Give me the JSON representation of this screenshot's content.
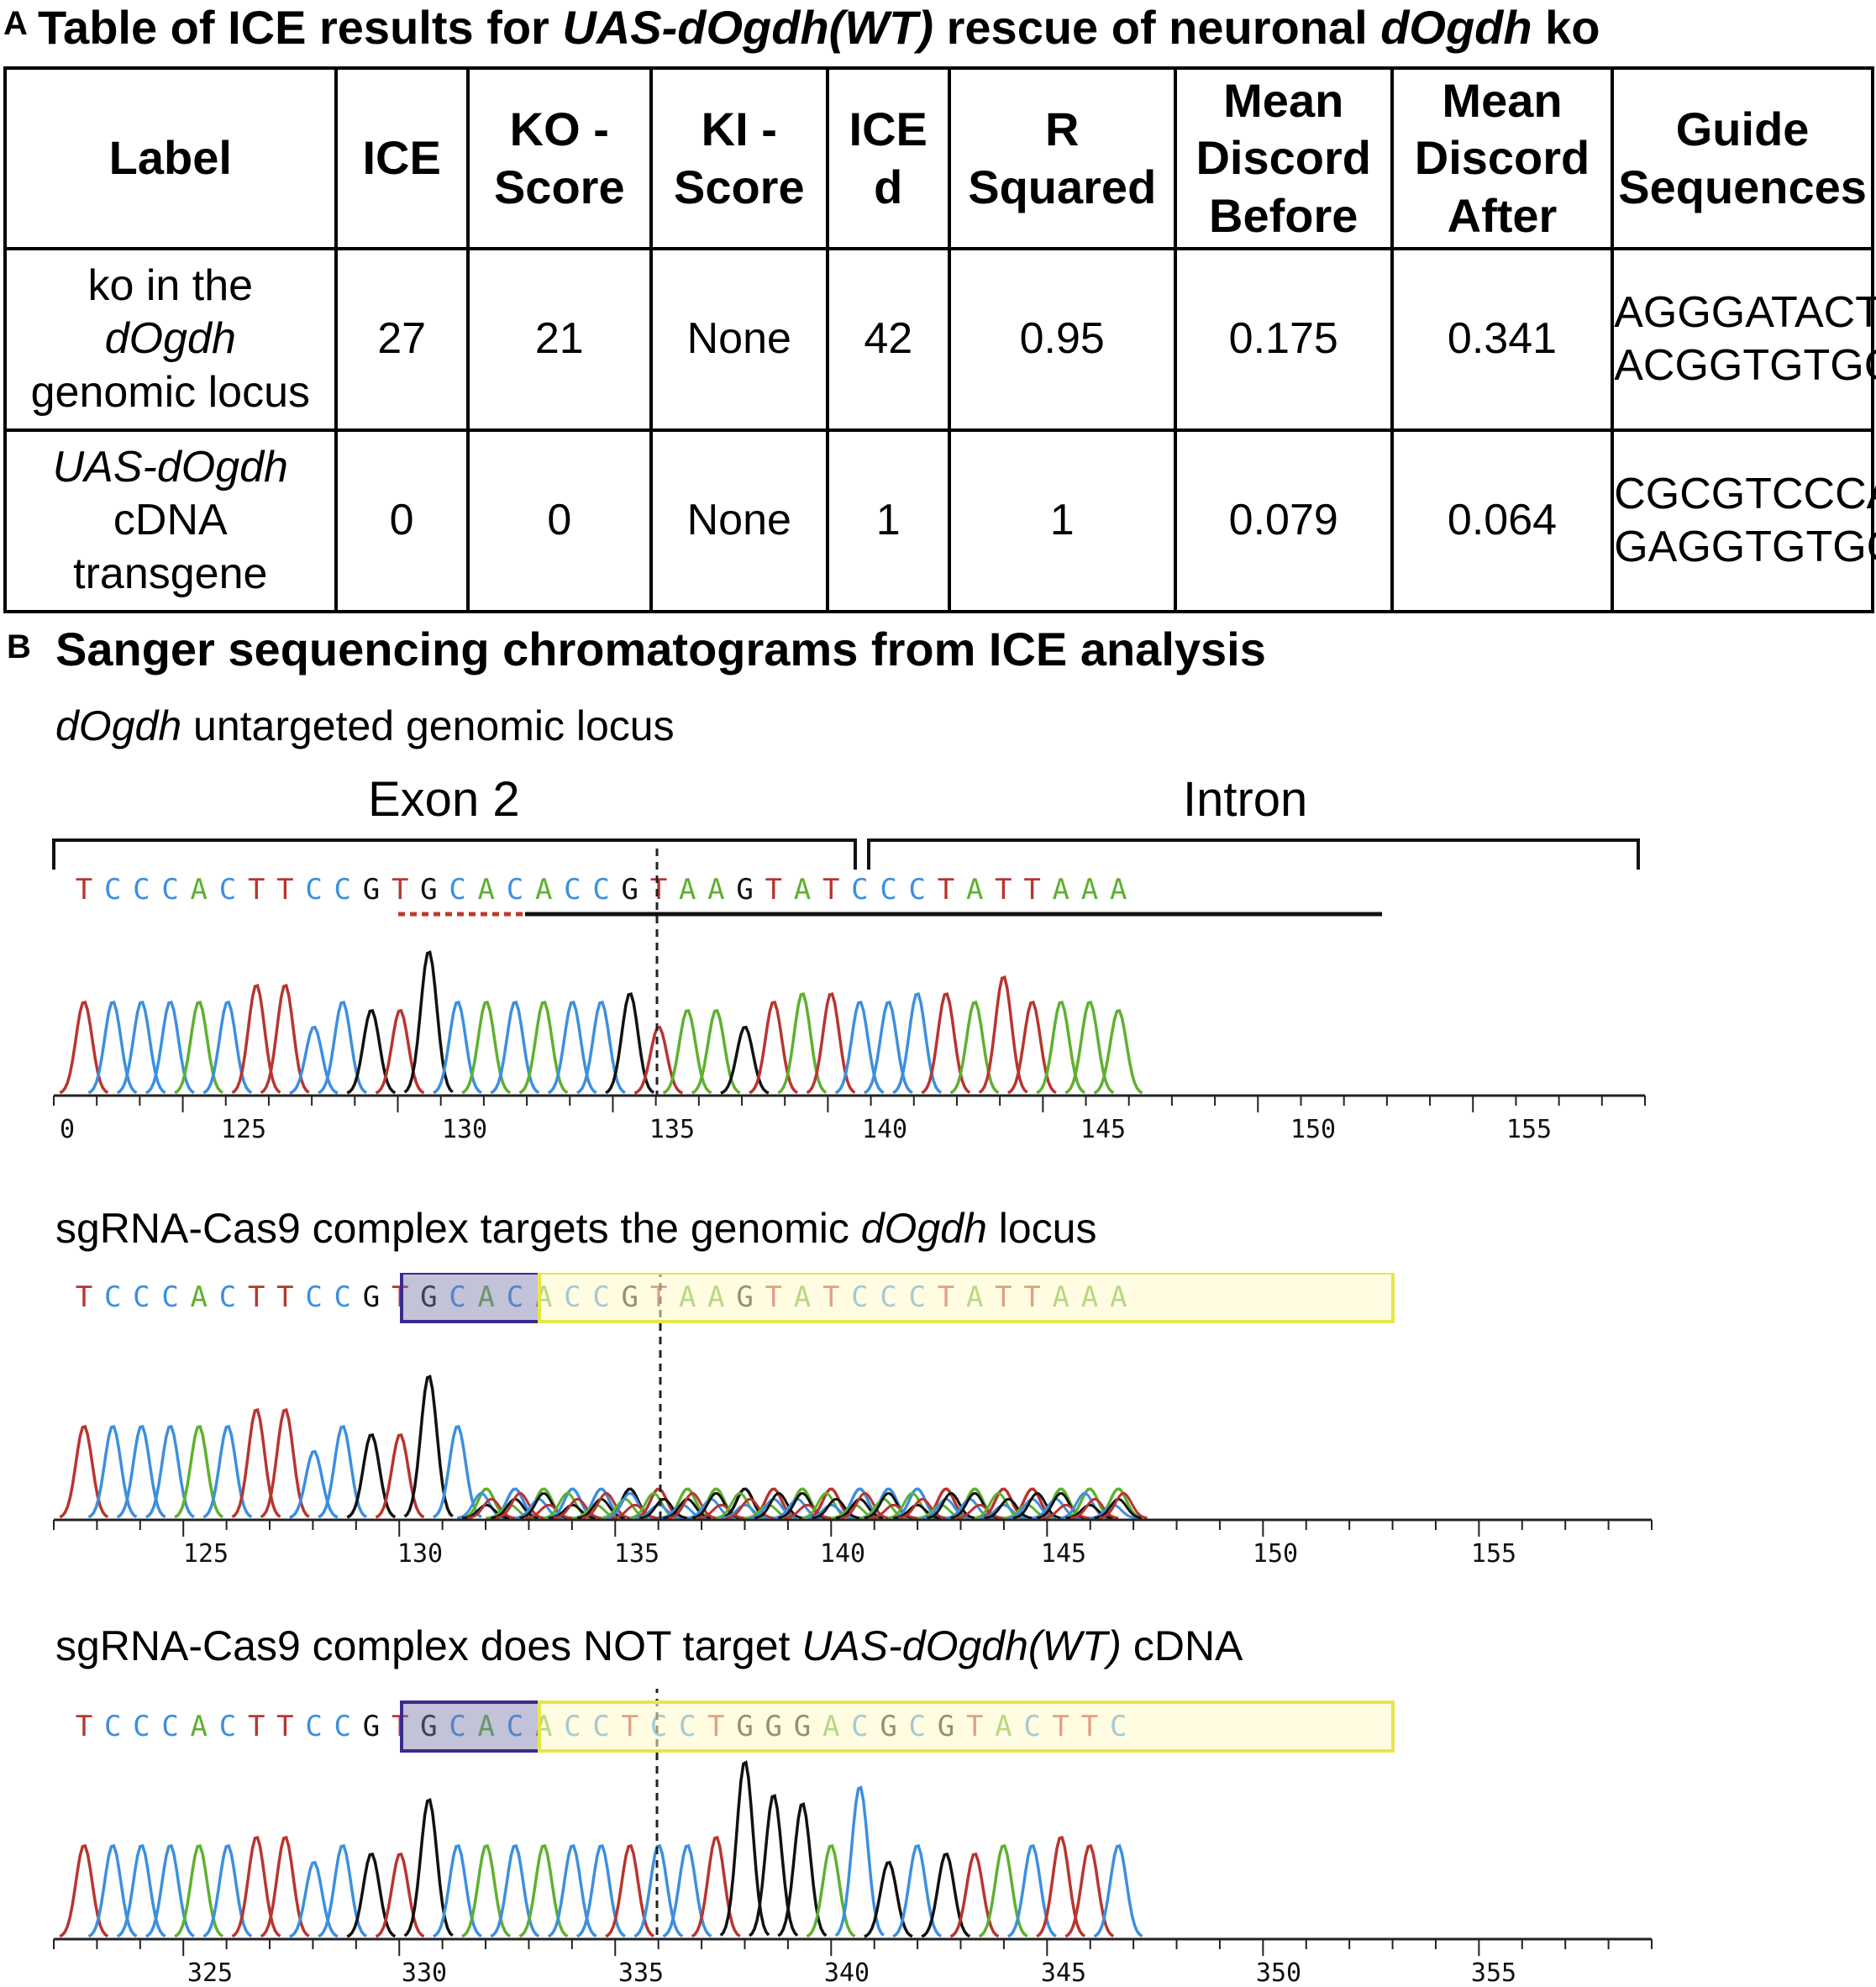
{
  "panel_a": {
    "letter": "A",
    "title_parts": [
      "Table of ICE results for ",
      "UAS-dOgdh(WT)",
      " rescue of neuronal ",
      "dOgdh",
      " ko"
    ],
    "headers": [
      [
        "Label"
      ],
      [
        "ICE"
      ],
      [
        "KO -",
        "Score"
      ],
      [
        "KI -",
        "Score"
      ],
      [
        "ICE",
        "d"
      ],
      [
        "R",
        "Squared"
      ],
      [
        "Mean",
        "Discord",
        "Before"
      ],
      [
        "Mean",
        "Discord",
        "After"
      ],
      [
        "Guide",
        "Sequences"
      ]
    ],
    "rows": [
      {
        "label": [
          {
            "t": "ko in the",
            "i": false
          },
          {
            "t": "dOgdh",
            "i": true
          },
          {
            "t": "genomic locus",
            "i": false
          }
        ],
        "ice": "27",
        "ko_score": "21",
        "ki_score": "None",
        "ice_d": "42",
        "r_squared": "0.95",
        "discord_before": "0.175",
        "discord_after": "0.341",
        "guides": [
          "AGGGATACTT",
          "ACGGTGTGCA"
        ]
      },
      {
        "label": [
          {
            "t": "UAS-dOgdh",
            "i": true
          },
          {
            "t": "cDNA",
            "i": false
          },
          {
            "t": "transgene",
            "i": false
          }
        ],
        "ice": "0",
        "ko_score": "0",
        "ki_score": "None",
        "ice_d": "1",
        "r_squared": "1",
        "discord_before": "0.079",
        "discord_after": "0.064",
        "guides": [
          "CGCGTCCCAG",
          "GAGGTGTGCA"
        ]
      }
    ]
  },
  "panel_b": {
    "letter": "B",
    "title": "Sanger sequencing chromatograms from ICE analysis",
    "base_colors": {
      "A": "#5fb030",
      "C": "#3d8fde",
      "G": "#111111",
      "T": "#b8352f"
    },
    "chromatograms": [
      {
        "caption": [
          {
            "t": "dOgdh",
            "i": true
          },
          {
            "t": " untargeted genomic locus",
            "i": false
          }
        ],
        "region_labels": [
          "Exon 2",
          "Intron"
        ],
        "sequence": "TCCCACTTCCGTGCACACCGTAAGTATCCCTATTAAA",
        "axis_labels": [
          "0",
          "125",
          "130",
          "135",
          "140",
          "145",
          "150",
          "155"
        ]
      },
      {
        "caption": [
          {
            "t": "sgRNA-Cas9 complex targets the genomic ",
            "i": false
          },
          {
            "t": "dOgdh",
            "i": true
          },
          {
            "t": " locus",
            "i": false
          }
        ],
        "sequence": "TCCCACTTCCGTGCACACCGTAAGTATCCCTATTAAA",
        "axis_labels": [
          "125",
          "130",
          "135",
          "140",
          "145",
          "150",
          "155"
        ]
      },
      {
        "caption": [
          {
            "t": "sgRNA-Cas9 complex does NOT target ",
            "i": false
          },
          {
            "t": "UAS-dOgdh(WT)",
            "i": true
          },
          {
            "t": " cDNA",
            "i": false
          }
        ],
        "sequence": "TCCCACTTCCGTGCACACCTCCTGGGACGCGTACTTC",
        "axis_labels": [
          "325",
          "330",
          "335",
          "340",
          "345",
          "350",
          "355"
        ]
      }
    ]
  }
}
